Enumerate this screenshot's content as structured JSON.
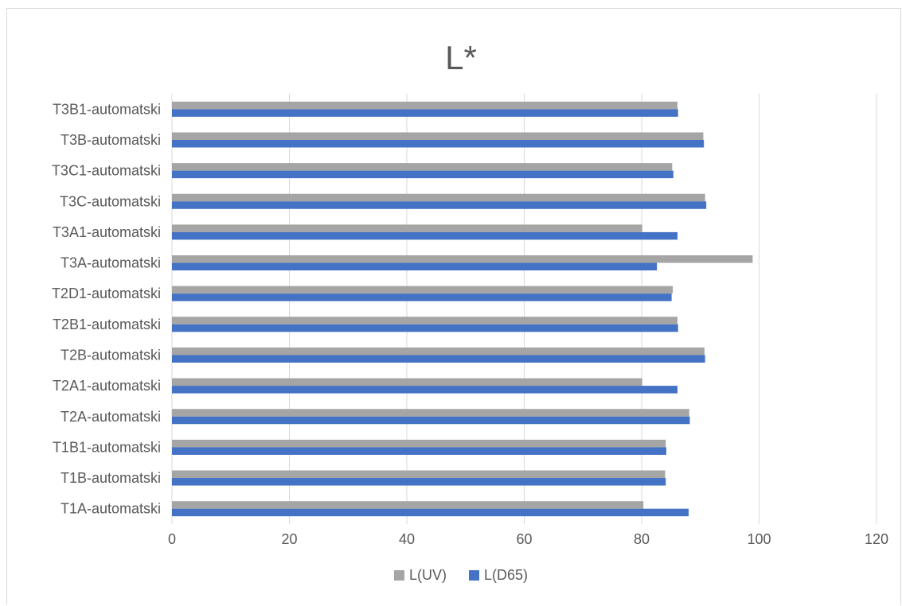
{
  "chart_data": {
    "type": "bar",
    "orientation": "horizontal",
    "title": "L*",
    "xlabel": "",
    "ylabel": "",
    "xlim": [
      0,
      120
    ],
    "x_ticks": [
      0,
      20,
      40,
      60,
      80,
      100,
      120
    ],
    "grid": "vertical",
    "legend": "bottom",
    "categories": [
      "T1A-automatski",
      "T1B-automatski",
      "T1B1-automatski",
      "T2A-automatski",
      "T2A1-automatski",
      "T2B-automatski",
      "T2B1-automatski",
      "T2D1-automatski",
      "T3A-automatski",
      "T3A1-automatski",
      "T3C-automatski",
      "T3C1-automatski",
      "T3B-automatski",
      "T3B1-automatski"
    ],
    "series": [
      {
        "name": "L(UV)",
        "color": "#a5a5a5",
        "values": [
          80.3,
          84.0,
          84.1,
          88.1,
          80.1,
          90.7,
          86.1,
          85.3,
          98.9,
          80.1,
          90.8,
          85.2,
          90.5,
          86.1
        ]
      },
      {
        "name": "L(D65)",
        "color": "#4472c4",
        "values": [
          88.0,
          84.1,
          84.2,
          88.2,
          86.1,
          90.8,
          86.2,
          85.1,
          82.6,
          86.1,
          91.0,
          85.4,
          90.6,
          86.2
        ]
      }
    ]
  }
}
